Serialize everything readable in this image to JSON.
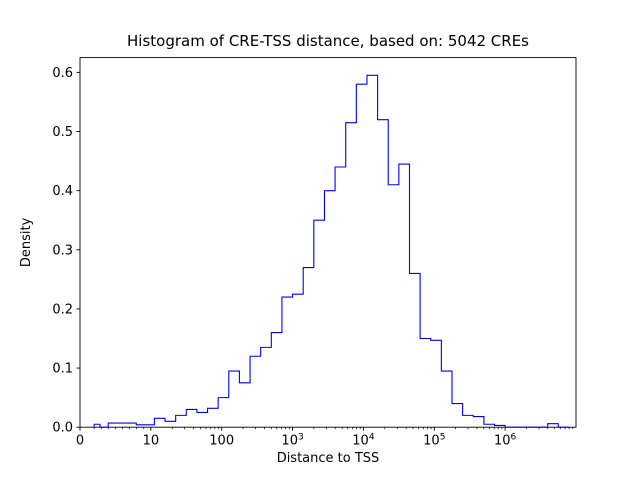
{
  "figure": {
    "background": "#ffffff",
    "border_color": "#000000"
  },
  "chart_data": {
    "type": "bar",
    "subtype": "step-histogram",
    "title": "Histogram of CRE-TSS distance, based on: 5042 CREs",
    "xlabel": "Distance to TSS",
    "ylabel": "Density",
    "line_color": "#0000ff",
    "x_scale": "symlog",
    "grid": "off",
    "legend": "none",
    "xlim_u": [
      0,
      7
    ],
    "ylim": [
      0,
      0.625
    ],
    "x_ticks": [
      {
        "value": 0,
        "label": "0"
      },
      {
        "value": 10,
        "label": "10"
      },
      {
        "value": 100,
        "label": "100"
      },
      {
        "value": 1000,
        "label": "10^3"
      },
      {
        "value": 10000,
        "label": "10^4"
      },
      {
        "value": 100000,
        "label": "10^5"
      },
      {
        "value": 1000000,
        "label": "10^6"
      }
    ],
    "y_ticks": [
      {
        "value": 0.0,
        "label": "0.0"
      },
      {
        "value": 0.1,
        "label": "0.1"
      },
      {
        "value": 0.2,
        "label": "0.2"
      },
      {
        "value": 0.3,
        "label": "0.3"
      },
      {
        "value": 0.4,
        "label": "0.4"
      },
      {
        "value": 0.5,
        "label": "0.5"
      },
      {
        "value": 0.6,
        "label": "0.6"
      }
    ],
    "bin_edges_log10": [
      0.3,
      0.45,
      0.6,
      0.75,
      0.9,
      1.05,
      1.2,
      1.35,
      1.5,
      1.65,
      1.8,
      1.95,
      2.1,
      2.25,
      2.4,
      2.55,
      2.7,
      2.85,
      3.0,
      3.15,
      3.3,
      3.45,
      3.6,
      3.75,
      3.9,
      4.05,
      4.2,
      4.35,
      4.5,
      4.65,
      4.8,
      4.95,
      5.1,
      5.25,
      5.4,
      5.55,
      5.7,
      5.85,
      6.0,
      6.15,
      6.3,
      6.45,
      6.6,
      6.75,
      6.9
    ],
    "densities": [
      0.005,
      0.0,
      0.007,
      0.007,
      0.004,
      0.015,
      0.01,
      0.02,
      0.03,
      0.025,
      0.032,
      0.05,
      0.095,
      0.075,
      0.12,
      0.135,
      0.16,
      0.22,
      0.225,
      0.27,
      0.35,
      0.4,
      0.44,
      0.515,
      0.58,
      0.595,
      0.52,
      0.41,
      0.445,
      0.26,
      0.15,
      0.147,
      0.095,
      0.04,
      0.02,
      0.018,
      0.005,
      0.003,
      0.0,
      0.0,
      0.0,
      0.0,
      0.006,
      0.0
    ]
  }
}
